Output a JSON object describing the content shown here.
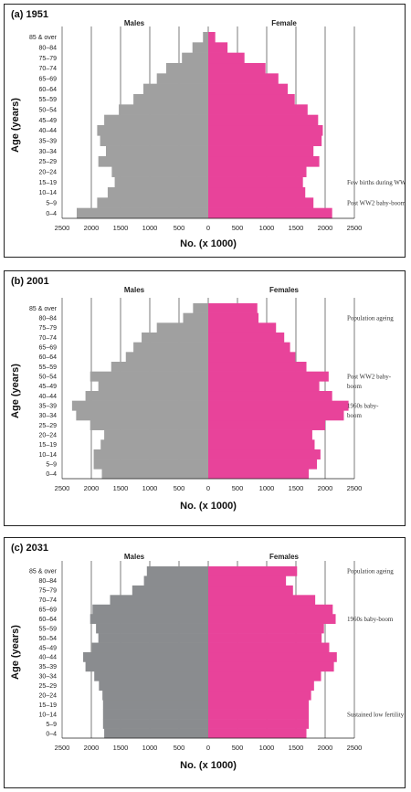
{
  "chart_data": [
    {
      "type": "bar",
      "title": "(a) 1951",
      "xlabel": "No. (x 1000)",
      "ylabel": "Age (years)",
      "left_label": "Males",
      "right_label": "Female",
      "categories": [
        "0–4",
        "5–9",
        "10–14",
        "15–19",
        "20–24",
        "25–29",
        "30–34",
        "35–39",
        "40–44",
        "45–49",
        "50–54",
        "55–59",
        "60–64",
        "65–69",
        "70–74",
        "75–79",
        "80–84",
        "85 & over"
      ],
      "xlim": [
        -2500,
        2500
      ],
      "xticks": [
        "2500",
        "2000",
        "1500",
        "1000",
        "500",
        "0",
        "500",
        "1000",
        "1500",
        "2000",
        "2500"
      ],
      "series": [
        {
          "name": "Males",
          "values": [
            2250,
            1900,
            1720,
            1600,
            1650,
            1880,
            1750,
            1850,
            1900,
            1780,
            1530,
            1280,
            1110,
            880,
            720,
            450,
            270,
            90
          ]
        },
        {
          "name": "Female",
          "values": [
            2120,
            1800,
            1660,
            1620,
            1680,
            1900,
            1800,
            1940,
            1960,
            1880,
            1700,
            1480,
            1360,
            1200,
            980,
            620,
            330,
            120
          ]
        }
      ],
      "annotations": [
        {
          "text": "Few births during WW2",
          "category": "15–19"
        },
        {
          "text": "Post WW2 baby-boom",
          "category": "5–9"
        }
      ],
      "colors": {
        "males": "#a0a0a0",
        "females": "#e8439a"
      }
    },
    {
      "type": "bar",
      "title": "(b) 2001",
      "xlabel": "No. (x 1000)",
      "ylabel": "Age (years)",
      "left_label": "Males",
      "right_label": "Females",
      "categories": [
        "0–4",
        "5–9",
        "10–14",
        "15–19",
        "20–24",
        "25–29",
        "30–34",
        "35–39",
        "40–44",
        "45–49",
        "50–54",
        "55–59",
        "60–64",
        "65–69",
        "70–74",
        "75–79",
        "80–84",
        "85 & over"
      ],
      "xlim": [
        -2500,
        2500
      ],
      "xticks": [
        "2500",
        "2000",
        "1500",
        "1000",
        "500",
        "0",
        "500",
        "1000",
        "1500",
        "2000",
        "2500"
      ],
      "series": [
        {
          "name": "Males",
          "values": [
            1820,
            1960,
            1960,
            1840,
            1780,
            2020,
            2260,
            2330,
            2100,
            1880,
            2020,
            1660,
            1410,
            1280,
            1140,
            880,
            430,
            260
          ]
        },
        {
          "name": "Females",
          "values": [
            1720,
            1860,
            1920,
            1820,
            1780,
            2000,
            2320,
            2400,
            2120,
            1900,
            2060,
            1680,
            1490,
            1400,
            1300,
            1160,
            860,
            840
          ]
        }
      ],
      "annotations": [
        {
          "text": "Population ageing",
          "category": "80–84"
        },
        {
          "text": "Post WW2 baby-",
          "category": "50–54"
        },
        {
          "text": "boom",
          "category": "45–49"
        },
        {
          "text": "1960s baby-",
          "category": "35–39"
        },
        {
          "text": "boom",
          "category": "30–34"
        }
      ],
      "colors": {
        "males": "#a0a0a0",
        "females": "#e8439a"
      }
    },
    {
      "type": "bar",
      "title": "(c) 2031",
      "xlabel": "No. (x 1000)",
      "ylabel": "Age (years)",
      "left_label": "Males",
      "right_label": "Females",
      "categories": [
        "0–4",
        "5–9",
        "10–14",
        "15–19",
        "20–24",
        "25–29",
        "30–34",
        "35–39",
        "40–44",
        "45–49",
        "50–54",
        "55–59",
        "60–64",
        "65–69",
        "70–74",
        "75–79",
        "80–84",
        "85 & over"
      ],
      "xlim": [
        -2500,
        2500
      ],
      "xticks": [
        "2500",
        "2000",
        "1500",
        "1000",
        "500",
        "0",
        "500",
        "1000",
        "1500",
        "2000",
        "2500"
      ],
      "series": [
        {
          "name": "Males",
          "values": [
            1780,
            1800,
            1800,
            1800,
            1810,
            1870,
            1950,
            2100,
            2140,
            1990,
            1880,
            1920,
            2020,
            1980,
            1680,
            1300,
            1100,
            1050
          ]
        },
        {
          "name": "Females",
          "values": [
            1680,
            1720,
            1720,
            1720,
            1760,
            1810,
            1930,
            2150,
            2200,
            2070,
            1940,
            1980,
            2180,
            2130,
            1830,
            1450,
            1330,
            1520
          ]
        }
      ],
      "annotations": [
        {
          "text": "Population ageing",
          "category": "85 & over"
        },
        {
          "text": "1960s baby-boom",
          "category": "60–64"
        },
        {
          "text": "Sustained low fertility",
          "category": "10–14"
        }
      ],
      "colors": {
        "males": "#8a8c8f",
        "females": "#e8439a"
      }
    }
  ]
}
